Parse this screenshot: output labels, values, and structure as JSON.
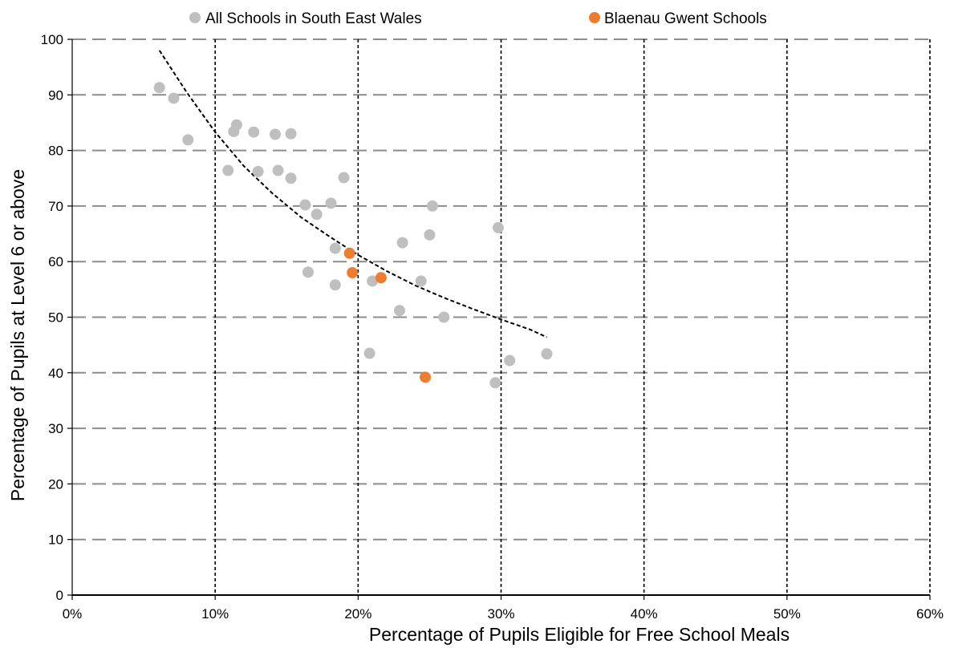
{
  "chart_data": {
    "type": "scatter",
    "xlabel": "Percentage of Pupils Eligible for Free School Meals",
    "ylabel": "Percentage of Pupils at Level 6 or above",
    "xlim": [
      0,
      60
    ],
    "ylim": [
      0,
      100
    ],
    "x_ticks": [
      0,
      10,
      20,
      30,
      40,
      50,
      60
    ],
    "x_tick_labels": [
      "0%",
      "10%",
      "20%",
      "30%",
      "40%",
      "50%",
      "60%"
    ],
    "y_ticks": [
      0,
      10,
      20,
      30,
      40,
      50,
      60,
      70,
      80,
      90,
      100
    ],
    "y_tick_labels": [
      "0",
      "10",
      "20",
      "30",
      "40",
      "50",
      "60",
      "70",
      "80",
      "90",
      "100"
    ],
    "grid": {
      "horizontal": "dashed grey",
      "vertical": "dashed black"
    },
    "legend_position": "top",
    "series": [
      {
        "name": "All Schools in South East Wales",
        "color": "#bfbfbf",
        "points": [
          [
            6.1,
            91.3
          ],
          [
            7.1,
            89.4
          ],
          [
            8.1,
            81.9
          ],
          [
            11.5,
            84.6
          ],
          [
            11.3,
            83.4
          ],
          [
            12.7,
            83.3
          ],
          [
            14.2,
            82.9
          ],
          [
            15.3,
            83.0
          ],
          [
            10.9,
            76.4
          ],
          [
            13.0,
            76.2
          ],
          [
            14.4,
            76.4
          ],
          [
            15.3,
            75.0
          ],
          [
            19.0,
            75.1
          ],
          [
            16.3,
            70.2
          ],
          [
            17.1,
            68.5
          ],
          [
            18.1,
            70.5
          ],
          [
            25.2,
            70.0
          ],
          [
            29.8,
            66.1
          ],
          [
            23.1,
            63.4
          ],
          [
            25.0,
            64.8
          ],
          [
            18.4,
            62.4
          ],
          [
            16.5,
            58.1
          ],
          [
            18.4,
            55.8
          ],
          [
            21.0,
            56.5
          ],
          [
            24.4,
            56.5
          ],
          [
            22.9,
            51.2
          ],
          [
            26.0,
            50.0
          ],
          [
            20.8,
            43.5
          ],
          [
            30.6,
            42.2
          ],
          [
            33.2,
            43.4
          ],
          [
            29.6,
            38.2
          ]
        ]
      },
      {
        "name": "Blaenau Gwent Schools",
        "color": "#ed7d31",
        "points": [
          [
            19.4,
            61.5
          ],
          [
            19.6,
            58.0
          ],
          [
            21.6,
            57.1
          ],
          [
            24.7,
            39.2
          ]
        ]
      }
    ],
    "trendline": {
      "style": "dashed",
      "color": "#000000",
      "points": [
        [
          6.1,
          98.0
        ],
        [
          8.0,
          90.5
        ],
        [
          10.0,
          83.3
        ],
        [
          12.0,
          77.2
        ],
        [
          14.0,
          72.3
        ],
        [
          16.0,
          68.0
        ],
        [
          18.0,
          64.5
        ],
        [
          20.0,
          61.2
        ],
        [
          22.0,
          58.3
        ],
        [
          24.0,
          55.7
        ],
        [
          26.0,
          53.5
        ],
        [
          28.0,
          51.5
        ],
        [
          30.0,
          49.6
        ],
        [
          32.0,
          47.8
        ],
        [
          33.2,
          46.4
        ]
      ]
    }
  }
}
